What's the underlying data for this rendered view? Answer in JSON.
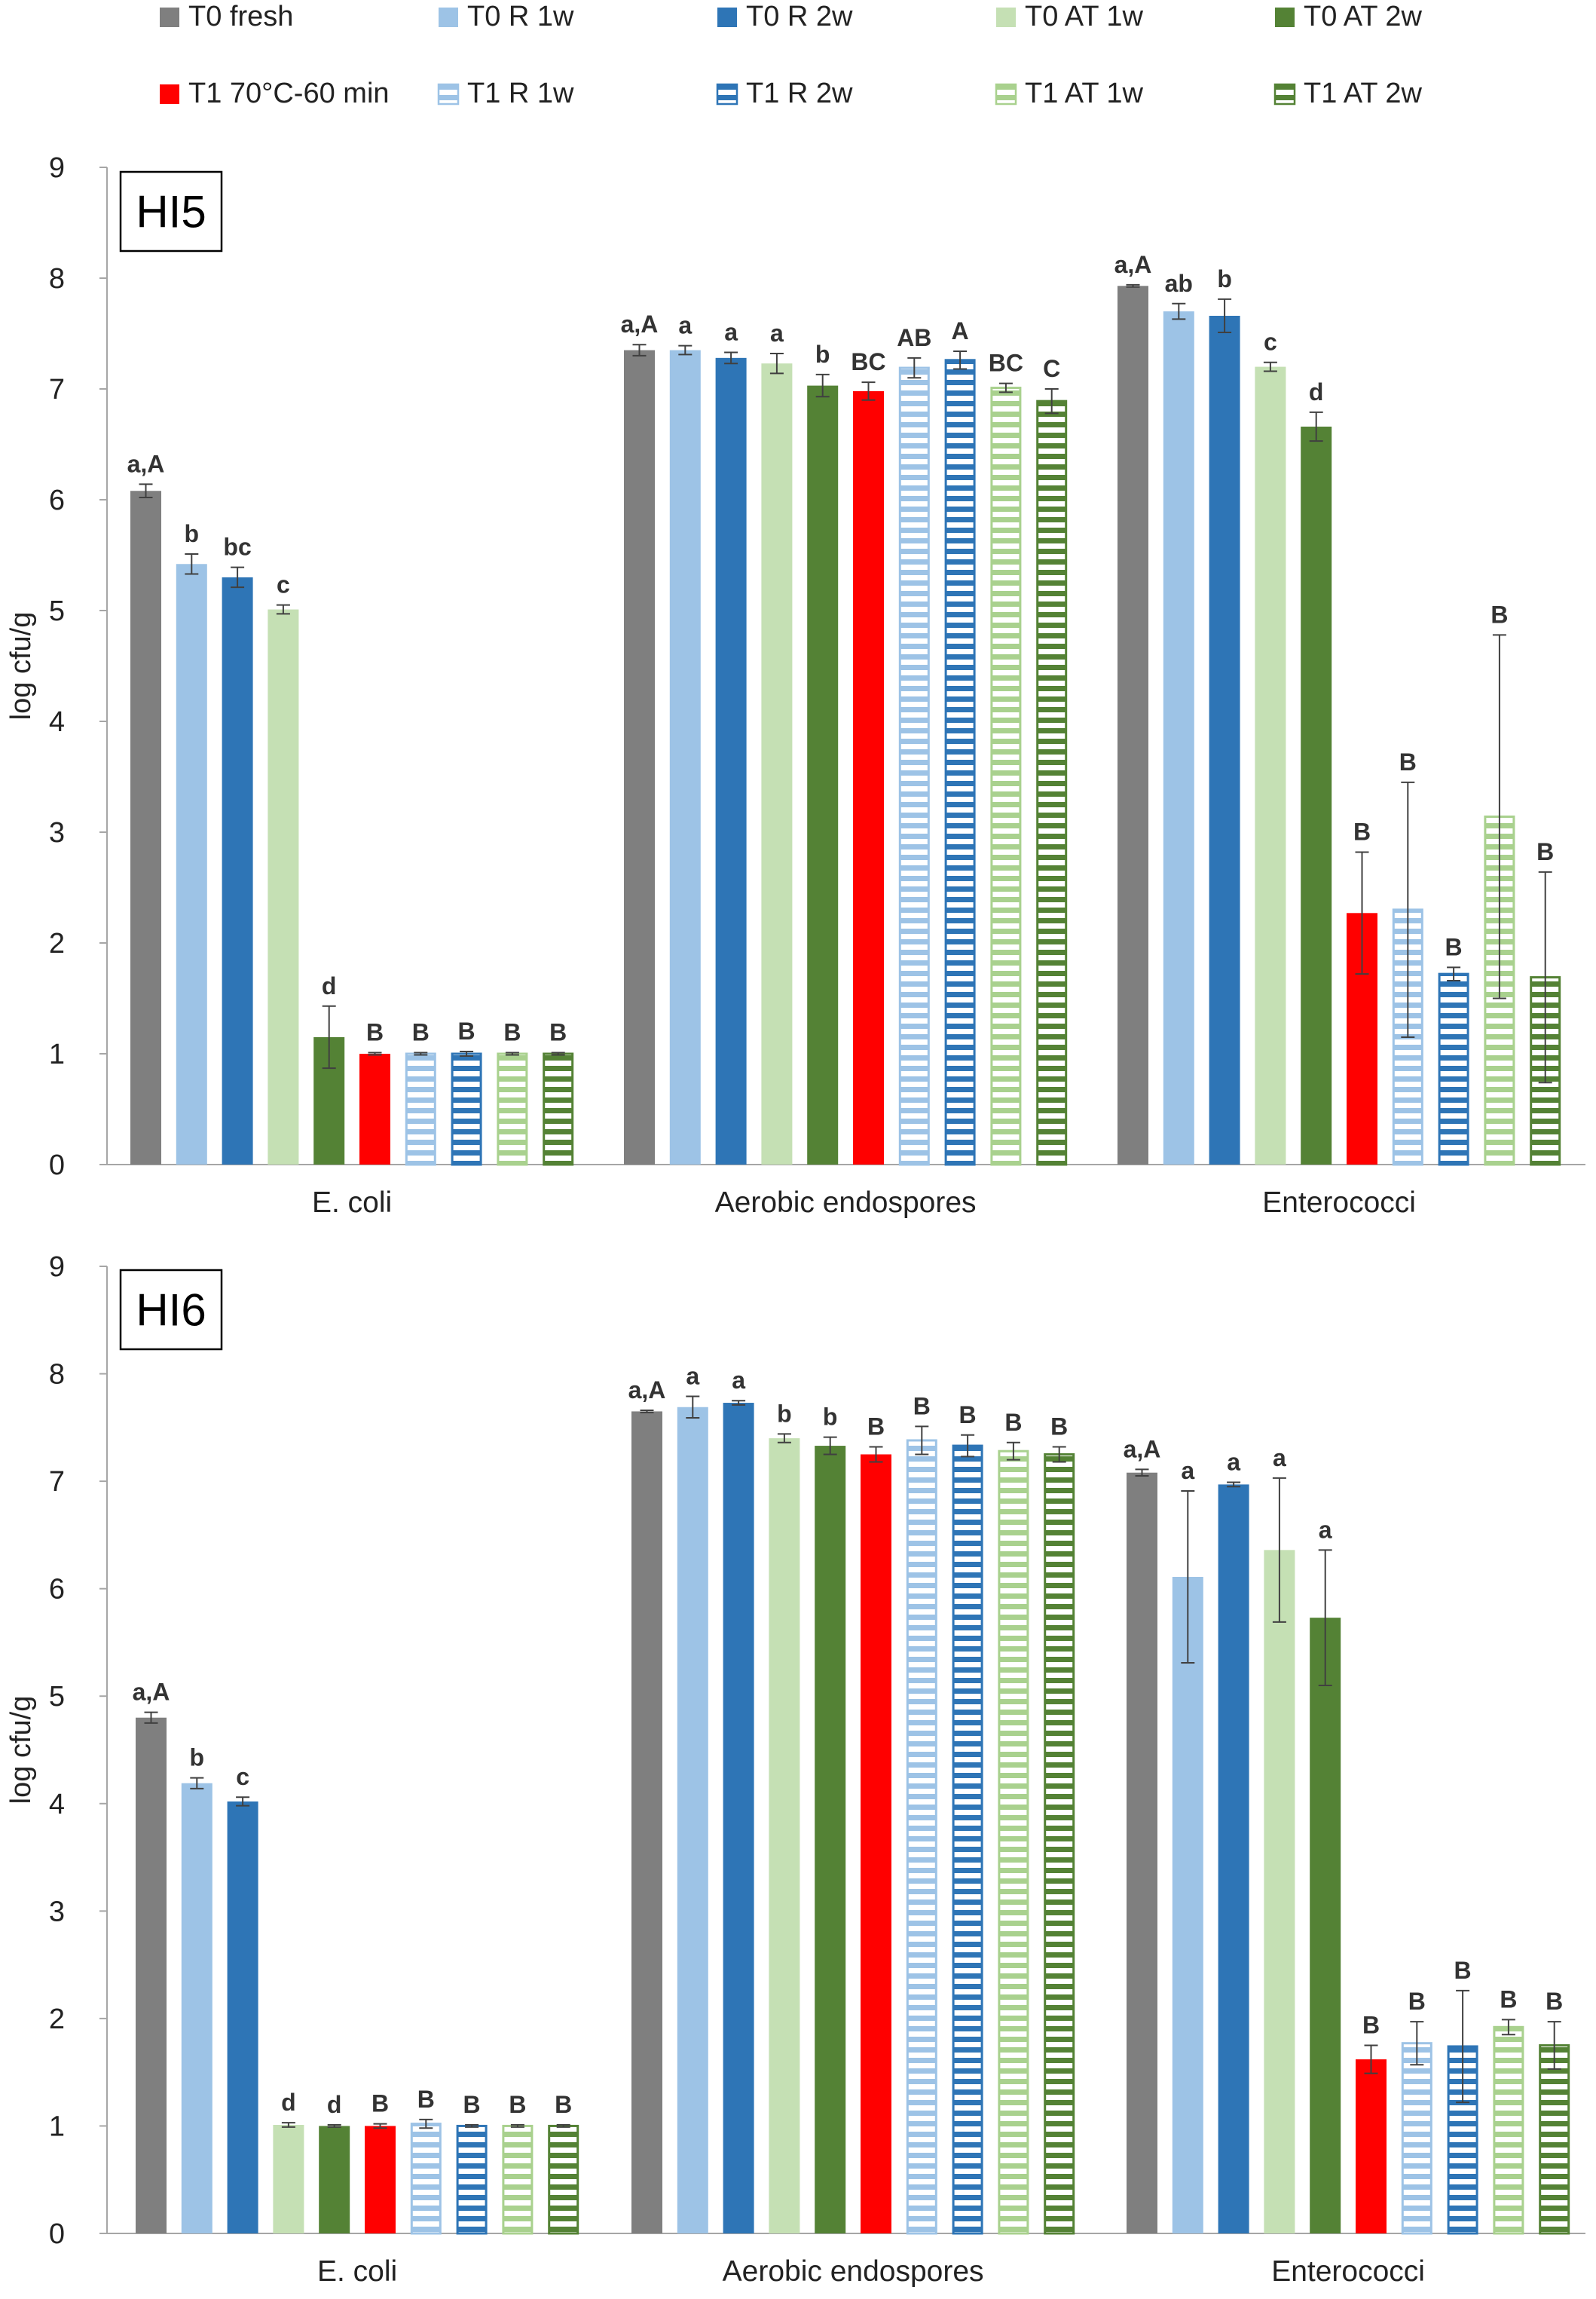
{
  "colors": {
    "T0 fresh": "#7F7F7F",
    "T0 R 1w": "#9DC3E6",
    "T0 R 2w": "#2E75B6",
    "T0 AT 1w": "#C5E0B4",
    "T0 AT 2w": "#548235",
    "T1 70°C-60 min": "#FF0000",
    "T1 R 1w": "#9DC3E6",
    "T1 R 2w": "#2E75B6",
    "T1 AT 1w": "#A9D18E",
    "T1 AT 2w": "#548235"
  },
  "legend": {
    "placement": "top",
    "items": [
      {
        "label": "T0 fresh",
        "pattern": "solid"
      },
      {
        "label": "T0 R 1w",
        "pattern": "solid"
      },
      {
        "label": "T0 R 2w",
        "pattern": "solid"
      },
      {
        "label": "T0 AT 1w",
        "pattern": "solid"
      },
      {
        "label": "T0 AT 2w",
        "pattern": "solid"
      },
      {
        "label": "T1 70°C-60 min",
        "pattern": "solid"
      },
      {
        "label": "T1 R 1w",
        "pattern": "stripes"
      },
      {
        "label": "T1 R 2w",
        "pattern": "stripes"
      },
      {
        "label": "T1 AT 1w",
        "pattern": "stripes"
      },
      {
        "label": "T1 AT 2w",
        "pattern": "stripes"
      }
    ]
  },
  "chart_data": [
    {
      "type": "bar",
      "panel_label": "HI5",
      "ylabel": "log cfu/g",
      "ylim": [
        0,
        9
      ],
      "yticks": [
        0,
        1,
        2,
        3,
        4,
        5,
        6,
        7,
        8,
        9
      ],
      "grid": false,
      "categories": [
        "E. coli",
        "Aerobic endospores",
        "Enterococci"
      ],
      "series": [
        {
          "name": "T0 fresh",
          "values": [
            6.08,
            7.35,
            7.93
          ],
          "errors": [
            0.06,
            0.05,
            0.01
          ],
          "labels": [
            "a,A",
            "a,A",
            "a,A"
          ]
        },
        {
          "name": "T0 R 1w",
          "values": [
            5.42,
            7.35,
            7.7
          ],
          "errors": [
            0.09,
            0.04,
            0.07
          ],
          "labels": [
            "b",
            "a",
            "ab"
          ]
        },
        {
          "name": "T0 R 2w",
          "values": [
            5.3,
            7.28,
            7.66
          ],
          "errors": [
            0.09,
            0.05,
            0.15
          ],
          "labels": [
            "bc",
            "a",
            "b"
          ]
        },
        {
          "name": "T0 AT 1w",
          "values": [
            5.01,
            7.23,
            7.2
          ],
          "errors": [
            0.04,
            0.09,
            0.04
          ],
          "labels": [
            "c",
            "a",
            "c"
          ]
        },
        {
          "name": "T0 AT 2w",
          "values": [
            1.15,
            7.03,
            6.66
          ],
          "errors": [
            0.28,
            0.1,
            0.13
          ],
          "labels": [
            "d",
            "b",
            "d"
          ]
        },
        {
          "name": "T1 70°C-60 min",
          "values": [
            1.0,
            6.98,
            2.27
          ],
          "errors": [
            0.01,
            0.08,
            0.55
          ],
          "labels": [
            "B",
            "BC",
            "B"
          ]
        },
        {
          "name": "T1 R 1w",
          "values": [
            1.0,
            7.19,
            2.3
          ],
          "errors": [
            0.01,
            0.09,
            1.15
          ],
          "labels": [
            "B",
            "AB",
            "B"
          ]
        },
        {
          "name": "T1 R 2w",
          "values": [
            1.0,
            7.26,
            1.72
          ],
          "errors": [
            0.02,
            0.08,
            0.06
          ],
          "labels": [
            "B",
            "A",
            "B"
          ]
        },
        {
          "name": "T1 AT 1w",
          "values": [
            1.0,
            7.01,
            3.14
          ],
          "errors": [
            0.01,
            0.04,
            1.64
          ],
          "labels": [
            "B",
            "BC",
            "B"
          ]
        },
        {
          "name": "T1 AT 2w",
          "values": [
            1.0,
            6.89,
            1.69
          ],
          "errors": [
            0.01,
            0.11,
            0.95
          ],
          "labels": [
            "B",
            "C",
            "B"
          ]
        }
      ]
    },
    {
      "type": "bar",
      "panel_label": "HI6",
      "ylabel": "log cfu/g",
      "ylim": [
        0,
        9
      ],
      "yticks": [
        0,
        1,
        2,
        3,
        4,
        5,
        6,
        7,
        8,
        9
      ],
      "grid": false,
      "categories": [
        "E. coli",
        "Aerobic endospores",
        "Enterococci"
      ],
      "series": [
        {
          "name": "T0 fresh",
          "values": [
            4.8,
            7.65,
            7.08
          ],
          "errors": [
            0.05,
            0.01,
            0.03
          ],
          "labels": [
            "a,A",
            "a,A",
            "a,A"
          ]
        },
        {
          "name": "T0 R 1w",
          "values": [
            4.19,
            7.69,
            6.11
          ],
          "errors": [
            0.05,
            0.1,
            0.8
          ],
          "labels": [
            "b",
            "a",
            "a"
          ]
        },
        {
          "name": "T0 R 2w",
          "values": [
            4.02,
            7.73,
            6.97
          ],
          "errors": [
            0.04,
            0.02,
            0.02
          ],
          "labels": [
            "c",
            "a",
            "a"
          ]
        },
        {
          "name": "T0 AT 1w",
          "values": [
            1.01,
            7.4,
            6.36
          ],
          "errors": [
            0.02,
            0.04,
            0.67
          ],
          "labels": [
            "d",
            "b",
            "a"
          ]
        },
        {
          "name": "T0 AT 2w",
          "values": [
            1.0,
            7.33,
            5.73
          ],
          "errors": [
            0.01,
            0.08,
            0.63
          ],
          "labels": [
            "d",
            "b",
            "a"
          ]
        },
        {
          "name": "T1 70°C-60 min",
          "values": [
            1.0,
            7.25,
            1.62
          ],
          "errors": [
            0.02,
            0.07,
            0.13
          ],
          "labels": [
            "B",
            "B",
            "B"
          ]
        },
        {
          "name": "T1 R 1w",
          "values": [
            1.02,
            7.38,
            1.77
          ],
          "errors": [
            0.04,
            0.13,
            0.2
          ],
          "labels": [
            "B",
            "B",
            "B"
          ]
        },
        {
          "name": "T1 R 2w",
          "values": [
            1.0,
            7.33,
            1.74
          ],
          "errors": [
            0.01,
            0.1,
            0.52
          ],
          "labels": [
            "B",
            "B",
            "B"
          ]
        },
        {
          "name": "T1 AT 1w",
          "values": [
            1.0,
            7.28,
            1.92
          ],
          "errors": [
            0.01,
            0.08,
            0.07
          ],
          "labels": [
            "B",
            "B",
            "B"
          ]
        },
        {
          "name": "T1 AT 2w",
          "values": [
            1.0,
            7.25,
            1.75
          ],
          "errors": [
            0.01,
            0.07,
            0.22
          ],
          "labels": [
            "B",
            "B",
            "B"
          ]
        }
      ]
    }
  ]
}
